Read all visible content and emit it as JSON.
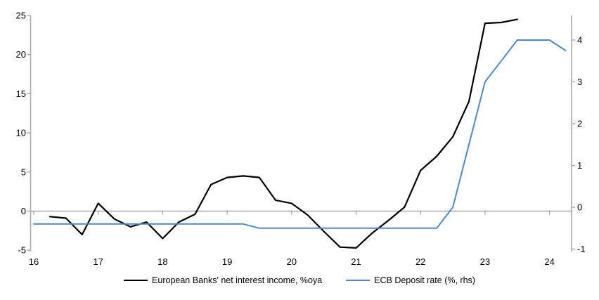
{
  "chart_data": {
    "type": "line",
    "title": "",
    "x_axis": {
      "tick_values": [
        16,
        17,
        18,
        19,
        20,
        21,
        22,
        23,
        24
      ],
      "tick_labels": [
        "16",
        "17",
        "18",
        "19",
        "20",
        "21",
        "22",
        "23",
        "24"
      ],
      "range": [
        15.95,
        24.35
      ]
    },
    "left_axis": {
      "tick_values": [
        -5,
        0,
        5,
        10,
        15,
        20,
        25
      ],
      "tick_labels": [
        "-5",
        "0",
        "5",
        "10",
        "15",
        "20",
        "25"
      ],
      "range": [
        -5,
        25
      ]
    },
    "right_axis": {
      "tick_values": [
        -1,
        0,
        1,
        2,
        3,
        4
      ],
      "tick_labels": [
        "-1",
        "0",
        "1",
        "2",
        "3",
        "4"
      ],
      "range": [
        -1.08,
        4.55
      ]
    },
    "zero_gridline": true,
    "legend_position": "bottom",
    "series": [
      {
        "name": "European Banks' net interest income, %oya",
        "axis": "left",
        "color": "#000000",
        "stroke_width": 2.2,
        "x": [
          16.25,
          16.5,
          16.75,
          17.0,
          17.25,
          17.5,
          17.75,
          18.0,
          18.25,
          18.5,
          18.75,
          19.0,
          19.25,
          19.5,
          19.75,
          20.0,
          20.25,
          20.5,
          20.75,
          21.0,
          21.25,
          21.5,
          21.75,
          22.0,
          22.25,
          22.5,
          22.75,
          23.0,
          23.25,
          23.5
        ],
        "values": [
          -0.7,
          -0.9,
          -3.0,
          1.0,
          -1.0,
          -2.0,
          -1.4,
          -3.5,
          -1.4,
          -0.4,
          3.4,
          4.3,
          4.5,
          4.3,
          1.4,
          1.0,
          -0.5,
          -2.6,
          -4.6,
          -4.7,
          -2.8,
          -1.2,
          0.5,
          5.2,
          7.0,
          9.5,
          14.0,
          24.0,
          24.1,
          24.5
        ]
      },
      {
        "name": "ECB Deposit rate (%, rhs)",
        "axis": "right",
        "color": "#4F87C9",
        "stroke_width": 2,
        "x": [
          16.0,
          16.25,
          16.5,
          16.75,
          17.0,
          17.25,
          17.5,
          17.75,
          18.0,
          18.25,
          18.5,
          18.75,
          19.0,
          19.25,
          19.5,
          19.75,
          20.0,
          20.25,
          20.5,
          20.75,
          21.0,
          21.25,
          21.5,
          21.75,
          22.0,
          22.25,
          22.5,
          22.75,
          23.0,
          23.25,
          23.5,
          23.75,
          24.0,
          24.25
        ],
        "values": [
          -0.4,
          -0.4,
          -0.4,
          -0.4,
          -0.4,
          -0.4,
          -0.4,
          -0.4,
          -0.4,
          -0.4,
          -0.4,
          -0.4,
          -0.4,
          -0.4,
          -0.5,
          -0.5,
          -0.5,
          -0.5,
          -0.5,
          -0.5,
          -0.5,
          -0.5,
          -0.5,
          -0.5,
          -0.5,
          -0.5,
          0.0,
          1.5,
          3.0,
          3.5,
          4.0,
          4.0,
          4.0,
          3.75
        ]
      }
    ],
    "colors": {
      "axis_line": "#a9a9a9",
      "gridline": "#a9a9a9",
      "tick_label": "#000000"
    }
  }
}
